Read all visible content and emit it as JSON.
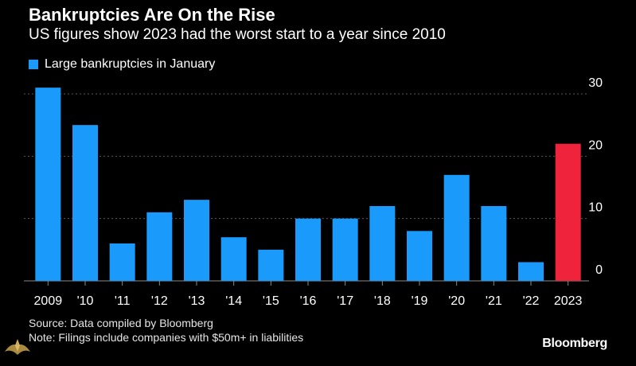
{
  "header": {
    "title": "Bankruptcies Are On the Rise",
    "subtitle": "US figures show 2023 had the worst start to a year since 2010"
  },
  "legend": {
    "label": "Large bankruptcies in January"
  },
  "colors": {
    "background": "#000000",
    "bar": "#1a9bfc",
    "highlight": "#f0233d",
    "grid": "#5a5a5a",
    "text": "#ffffff"
  },
  "chart_data": {
    "type": "bar",
    "title": "Bankruptcies Are On the Rise",
    "subtitle": "US figures show 2023 had the worst start to a year since 2010",
    "categories": [
      "2009",
      "'10",
      "'11",
      "'12",
      "'13",
      "'14",
      "'15",
      "'16",
      "'17",
      "'18",
      "'19",
      "'20",
      "'21",
      "'22",
      "2023"
    ],
    "series": [
      {
        "name": "Large bankruptcies in January",
        "values": [
          31,
          25,
          6,
          11,
          13,
          7,
          5,
          10,
          10,
          12,
          8,
          17,
          12,
          3,
          22
        ]
      }
    ],
    "highlight_index": 14,
    "ylim": [
      0,
      32
    ],
    "yticks": [
      0,
      10,
      20,
      30
    ],
    "y_axis_position": "right",
    "grid": true,
    "xlabel": "",
    "ylabel": ""
  },
  "footer": {
    "source": "Source: Data compiled by Bloomberg",
    "note": "Note: Filings include companies with $50m+ in liabilities",
    "brand": "Bloomberg"
  }
}
